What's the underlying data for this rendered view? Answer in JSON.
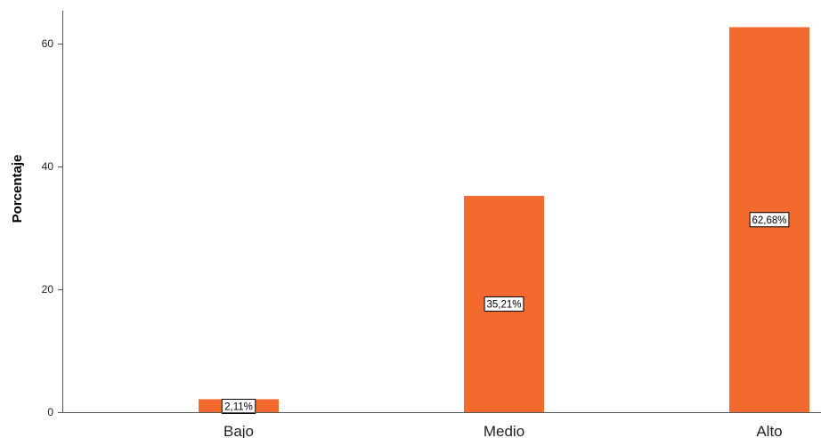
{
  "chart_data": {
    "type": "bar",
    "title": "",
    "xlabel": "",
    "ylabel": "Porcentaje",
    "categories": [
      "Bajo",
      "Medio",
      "Alto"
    ],
    "values": [
      2.11,
      35.21,
      62.68
    ],
    "data_labels": [
      "2,11%",
      "35,21%",
      "62,68%"
    ],
    "yticks": [
      0,
      20,
      40,
      60
    ],
    "ylim": [
      0,
      65
    ],
    "grid": false,
    "legend": "none",
    "bar_color": "#F26A2E"
  }
}
